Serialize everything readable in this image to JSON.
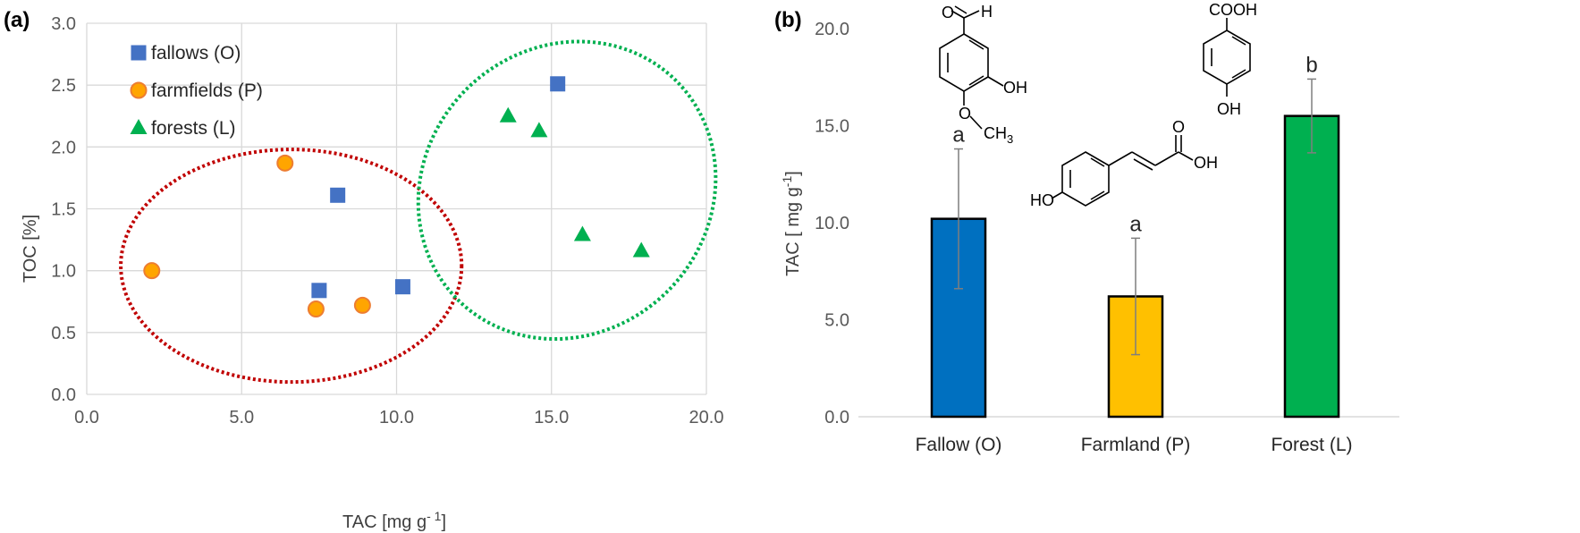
{
  "chart_data": [
    {
      "type": "scatter",
      "panel_label": "(a)",
      "xlabel": "TAC [mg g",
      "xlabel_sup": "- 1",
      "xlabel_end": "]",
      "ylabel": "TOC [%]",
      "xlim": [
        0,
        20
      ],
      "ylim": [
        0,
        3
      ],
      "x_ticks": [
        "0.0",
        "5.0",
        "10.0",
        "15.0",
        "20.0"
      ],
      "y_ticks": [
        "0.0",
        "0.5",
        "1.0",
        "1.5",
        "2.0",
        "2.5",
        "3.0"
      ],
      "grid": true,
      "legend_position": "top-left",
      "series": [
        {
          "name": "fallows (O)",
          "marker": "square",
          "color": "#4472C4",
          "points": [
            [
              8.1,
              1.61
            ],
            [
              7.5,
              0.84
            ],
            [
              10.2,
              0.87
            ],
            [
              15.2,
              2.51
            ]
          ]
        },
        {
          "name": "farmfields (P)",
          "marker": "circle",
          "color": "#FFA500",
          "edge": "#ED7D31",
          "points": [
            [
              6.4,
              1.87
            ],
            [
              2.1,
              1.0
            ],
            [
              7.4,
              0.69
            ],
            [
              8.9,
              0.72
            ]
          ]
        },
        {
          "name": "forests (L)",
          "marker": "triangle",
          "color": "#00B050",
          "points": [
            [
              13.6,
              2.25
            ],
            [
              14.6,
              2.13
            ],
            [
              16.0,
              1.29
            ],
            [
              17.9,
              1.16
            ]
          ]
        }
      ],
      "ellipses": [
        {
          "group": "fallows/farmfields",
          "color": "#C00000",
          "cx": 6.6,
          "cy": 1.04,
          "rx": 5.5,
          "ry": 0.94,
          "angle": 0
        },
        {
          "group": "forests",
          "color": "#00B050",
          "cx": 15.5,
          "cy": 1.65,
          "rx": 4.6,
          "ry": 1.25,
          "angle": 45
        }
      ]
    },
    {
      "type": "bar",
      "panel_label": "(b)",
      "ylabel": "TAC [ mg g",
      "ylabel_sup": "-1",
      "ylabel_end": "]",
      "ylim": [
        0,
        20
      ],
      "y_ticks": [
        "0.0",
        "5.0",
        "10.0",
        "15.0",
        "20.0"
      ],
      "grid": false,
      "categories": [
        "Fallow (O)",
        "Farmland (P)",
        "Forest (L)"
      ],
      "values": [
        10.2,
        6.2,
        15.5
      ],
      "errors": [
        3.6,
        3.0,
        1.9
      ],
      "colors": [
        "#0070C0",
        "#FFC000",
        "#00B050"
      ],
      "significance_letters": [
        "a",
        "a",
        "b"
      ]
    }
  ],
  "structures": {
    "vanillin": {
      "aldehyde_o": "O",
      "aldehyde_h": "H",
      "hydroxyl": "OH",
      "methoxy_o": "O",
      "methoxy": "CH",
      "methoxy_sub": "3"
    },
    "hydroxybenzoic": {
      "acid": "COOH",
      "hydroxyl": "OH"
    },
    "coumaric": {
      "carbonyl_o": "O",
      "acid_oh": "OH",
      "phenol": "HO"
    }
  }
}
